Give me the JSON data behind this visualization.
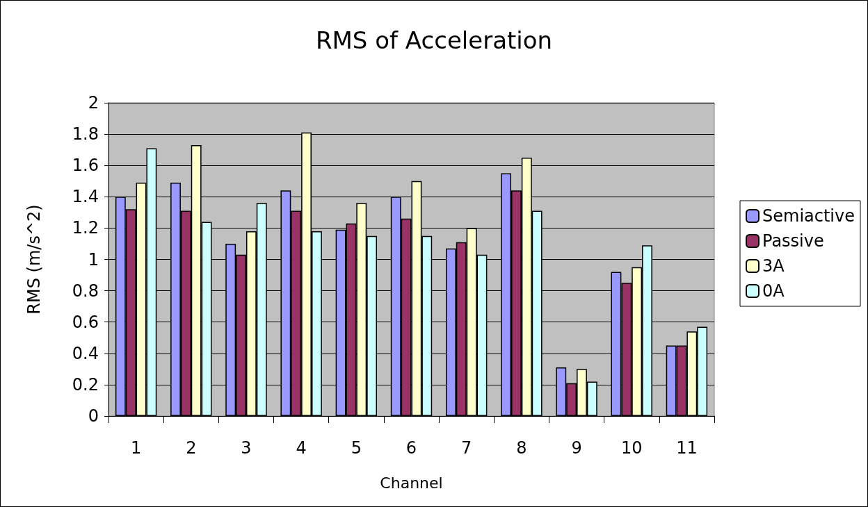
{
  "chart_data": {
    "type": "bar",
    "title": "RMS of Acceleration",
    "xlabel": "Channel",
    "ylabel": "RMS (m/s^2)",
    "categories": [
      "1",
      "2",
      "3",
      "4",
      "5",
      "6",
      "7",
      "8",
      "9",
      "10",
      "11"
    ],
    "series": [
      {
        "name": "Semiactive",
        "color": "#9999ff",
        "values": [
          1.4,
          1.49,
          1.1,
          1.44,
          1.19,
          1.4,
          1.07,
          1.55,
          0.31,
          0.92,
          0.45
        ]
      },
      {
        "name": "Passive",
        "color": "#993366",
        "values": [
          1.32,
          1.31,
          1.03,
          1.31,
          1.23,
          1.26,
          1.11,
          1.44,
          0.21,
          0.85,
          0.45
        ]
      },
      {
        "name": "3A",
        "color": "#ffffcc",
        "values": [
          1.49,
          1.73,
          1.18,
          1.81,
          1.36,
          1.5,
          1.2,
          1.65,
          0.3,
          0.95,
          0.54
        ]
      },
      {
        "name": "0A",
        "color": "#ccffff",
        "values": [
          1.71,
          1.24,
          1.36,
          1.18,
          1.15,
          1.15,
          1.03,
          1.31,
          0.22,
          1.09,
          0.57
        ]
      }
    ],
    "ylim": [
      0,
      2
    ],
    "yticks": [
      0,
      0.2,
      0.4,
      0.6,
      0.8,
      1,
      1.2,
      1.4,
      1.6,
      1.8,
      2
    ],
    "grid": "y",
    "legend": "right"
  }
}
